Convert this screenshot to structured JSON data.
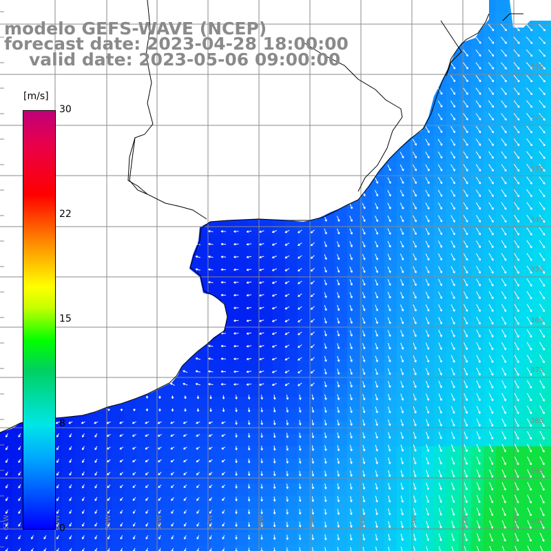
{
  "title": {
    "line1": "modelo GEFS-WAVE (NCEP)",
    "line2": "forecast date: 2023-04-28 18:00:00",
    "line3": "valid date: 2023-05-06 09:00:00"
  },
  "colorbar": {
    "unit": "[m/s]",
    "min": 0,
    "max": 30,
    "ticks": [
      "30",
      "22",
      "15",
      "8",
      "0"
    ],
    "tick_values": [
      30,
      22,
      15,
      8,
      0
    ],
    "colors": [
      "#0000ff",
      "#00a8ff",
      "#00e6e6",
      "#00d060",
      "#00ff00",
      "#ffff00",
      "#ff9000",
      "#ff0000",
      "#c0007a"
    ]
  },
  "map": {
    "land_color": "#ffffff",
    "grid_color": "#888888",
    "coast_color": "#000000",
    "arrow_color": "#ffffff",
    "lat_labels": [
      "31S",
      "32S",
      "33S",
      "34S",
      "35S",
      "36S",
      "37S",
      "38S",
      "39S",
      "40S"
    ],
    "lon_labels": [
      "61W",
      "60W",
      "59W",
      "58W",
      "57W",
      "56W",
      "55W",
      "54W",
      "53W",
      "52W",
      "51W"
    ]
  }
}
